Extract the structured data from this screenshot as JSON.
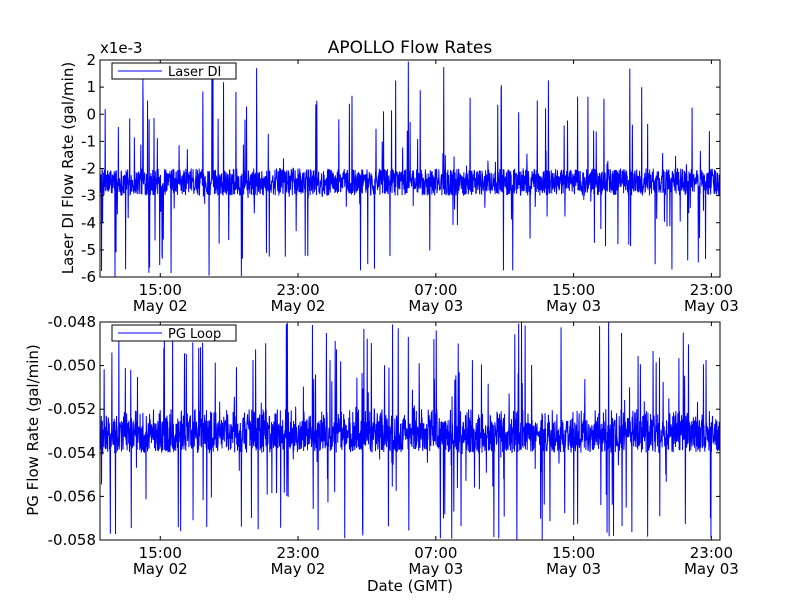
{
  "chart_data": [
    {
      "type": "line",
      "title": "APOLLO Flow Rates",
      "ylabel": "Laser DI Flow Rate (gal/min)",
      "xlabel": "",
      "offset_label": "x1e-3",
      "legend": {
        "label": "Laser DI",
        "location": "upper-left"
      },
      "series_color": "#0000ff",
      "ylim": [
        -6,
        2
      ],
      "yticks": [
        2,
        1,
        0,
        -1,
        -2,
        -3,
        -4,
        -5,
        -6
      ],
      "ytick_labels": [
        "2",
        "1",
        "0",
        "-1",
        "-2",
        "-3",
        "-4",
        "-5",
        "-6"
      ],
      "xlim_hours": [
        0,
        36
      ],
      "xticks_hours": [
        3.5,
        11.5,
        19.5,
        27.5,
        35.5
      ],
      "xtick_time_labels": [
        "15:00",
        "23:00",
        "07:00",
        "15:00",
        "23:00"
      ],
      "xtick_date_labels": [
        "May 02",
        "May 02",
        "May 03",
        "May 03",
        "May 03"
      ],
      "baseline": -2.5,
      "noise_band": [
        -3,
        -2
      ],
      "series": [
        {
          "name": "Laser DI",
          "description": "Flow rate samples hovering between -3 and -2 (x1e-3 gal/min) with frequent spikes from -6 up to 2",
          "values_summary": {
            "typical_min": -3,
            "typical_max": -2,
            "min": -6,
            "max": 2
          }
        }
      ]
    },
    {
      "type": "line",
      "title": "",
      "ylabel": "PG Flow Rate (gal/min)",
      "xlabel": "Date (GMT)",
      "legend": {
        "label": "PG Loop",
        "location": "upper-left"
      },
      "series_color": "#0000ff",
      "ylim": [
        -0.058,
        -0.048
      ],
      "yticks": [
        -0.048,
        -0.05,
        -0.052,
        -0.054,
        -0.056,
        -0.058
      ],
      "ytick_labels": [
        "-0.048",
        "-0.050",
        "-0.052",
        "-0.054",
        "-0.056",
        "-0.058"
      ],
      "xlim_hours": [
        0,
        36
      ],
      "xticks_hours": [
        3.5,
        11.5,
        19.5,
        27.5,
        35.5
      ],
      "xtick_time_labels": [
        "15:00",
        "23:00",
        "07:00",
        "15:00",
        "23:00"
      ],
      "xtick_date_labels": [
        "May 02",
        "May 02",
        "May 03",
        "May 03",
        "May 03"
      ],
      "baseline": -0.0533,
      "noise_band": [
        -0.054,
        -0.0525
      ],
      "series": [
        {
          "name": "PG Loop",
          "description": "Flow rate samples concentrated between -0.054 and -0.052 gal/min with spikes from -0.058 up to -0.048",
          "values_summary": {
            "typical_min": -0.054,
            "typical_max": -0.052,
            "min": -0.058,
            "max": -0.048
          }
        }
      ]
    }
  ]
}
